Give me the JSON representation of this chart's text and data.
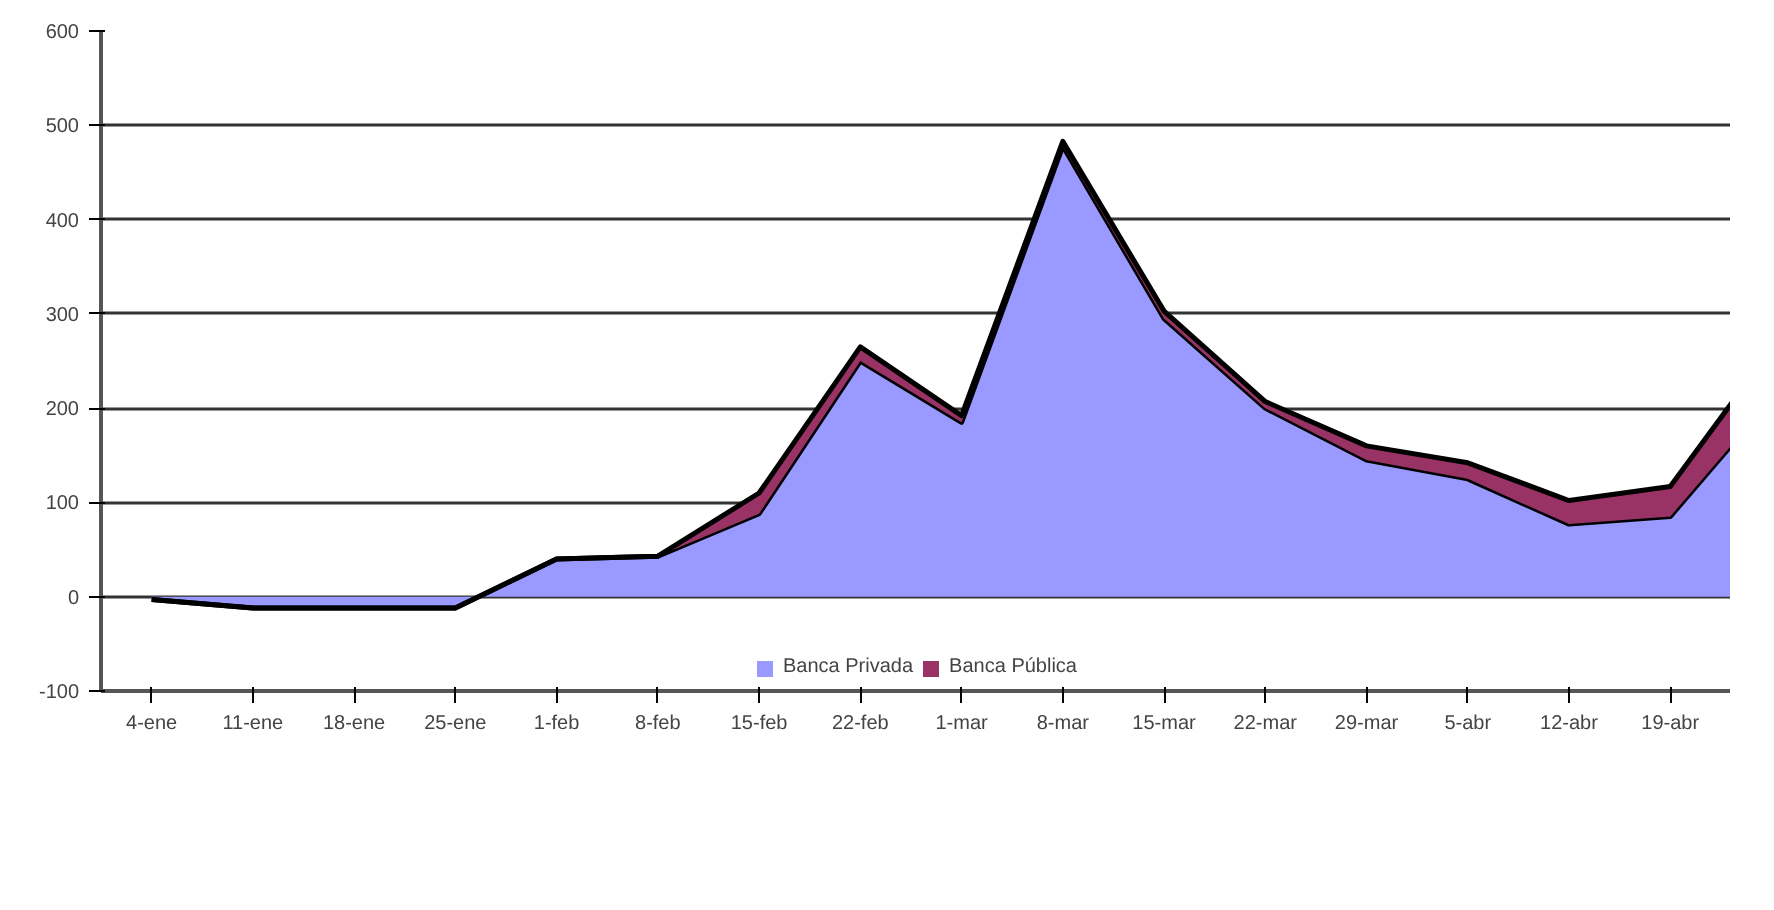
{
  "chart_data": {
    "type": "area",
    "stacked": true,
    "categories": [
      "4-ene",
      "11-ene",
      "18-ene",
      "25-ene",
      "1-feb",
      "8-feb",
      "15-feb",
      "22-feb",
      "1-mar",
      "8-mar",
      "15-mar",
      "22-mar",
      "29-mar",
      "5-abr",
      "12-abr",
      "19-abr",
      null
    ],
    "series": [
      {
        "name": "Banca Privada",
        "color": "#9999ff",
        "values": [
          -3,
          -12,
          -12,
          -12,
          40,
          43,
          88,
          250,
          185,
          478,
          295,
          200,
          145,
          125,
          77,
          85,
          210
        ]
      },
      {
        "name": "Banca Pública",
        "color": "#993366",
        "values": [
          0,
          0,
          0,
          0,
          0,
          0,
          22,
          15,
          7,
          5,
          8,
          7,
          15,
          17,
          25,
          32,
          53
        ]
      }
    ],
    "ylim": [
      -100,
      600
    ],
    "yticks": [
      -100,
      0,
      100,
      200,
      300,
      400,
      500,
      600
    ],
    "grid": "y",
    "legend": "bottom"
  }
}
